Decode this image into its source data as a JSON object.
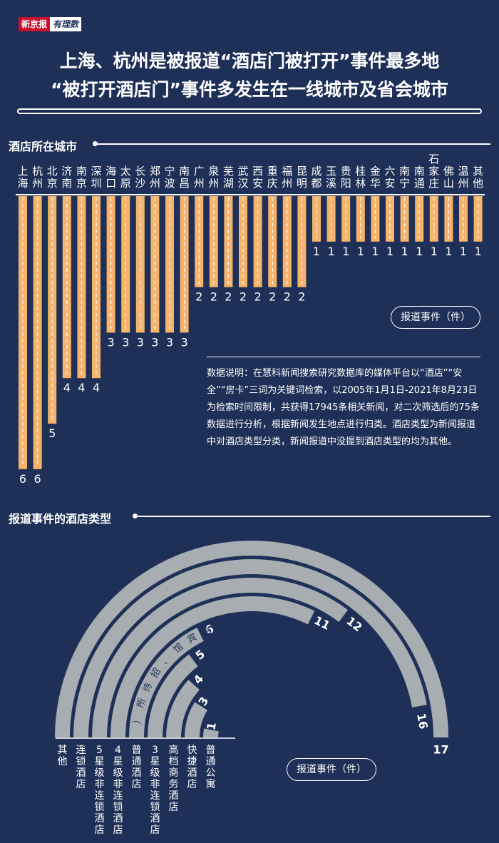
{
  "header": {
    "brand_main": "新京报",
    "brand_sub": "有理数",
    "title_line1": "上海、杭州是被报道“酒店门被打开”事件最多地",
    "title_line2": "“被打开酒店门”事件多发生在一线城市及省会城市"
  },
  "section1": {
    "title": "酒店所在城市"
  },
  "section2": {
    "title": "报道事件的酒店类型"
  },
  "note": "数据说明：在慧科新闻搜索研究数据库的媒体平台以“酒店”“安全”“房卡”三词为关键词检索，以2005年1月1日-2021年8月23日为检索时间限制，共获得17945条相关新闻，对二次筛选后的75条数据进行分析，根据新闻发生地点进行归类。酒店类型为新闻报道中对酒店类型分类，新闻报道中没提到酒店类型的均为其他。",
  "colors": {
    "background": "#1e3057",
    "bar_fill": "#f7b36b",
    "arc_fill": "#a8adb1",
    "text": "#ffffff"
  },
  "chart_data": [
    {
      "type": "bar",
      "title": "酒店所在城市",
      "unit_label": "报道事件（件）",
      "orientation": "vertical-downward",
      "categories": [
        "上海",
        "杭州",
        "北京",
        "济南",
        "南京",
        "深圳",
        "海口",
        "太原",
        "长沙",
        "郑州",
        "宁波",
        "南昌",
        "广州",
        "泉州",
        "芜湖",
        "武汉",
        "西安",
        "重庆",
        "福州",
        "昆明",
        "成都",
        "玉溪",
        "贵阳",
        "桂林",
        "金华",
        "六安",
        "南宁",
        "南通",
        "石家庄",
        "佛山",
        "温州",
        "其他"
      ],
      "values": [
        6,
        6,
        5,
        4,
        4,
        4,
        3,
        3,
        3,
        3,
        3,
        3,
        2,
        2,
        2,
        2,
        2,
        2,
        2,
        2,
        1,
        1,
        1,
        1,
        1,
        1,
        1,
        1,
        1,
        1,
        1,
        1
      ],
      "ylim": [
        0,
        6
      ]
    },
    {
      "type": "radial-bar",
      "title": "报道事件的酒店类型",
      "unit_label": "报道事件（件）",
      "categories": [
        "其他",
        "连锁酒店",
        "5星级非连锁酒店",
        "4星级非连锁酒店",
        "普通酒店",
        "3星级非连锁酒店",
        "高档商务酒店",
        "快捷酒店",
        "普通公寓"
      ],
      "values": [
        17,
        16,
        12,
        11,
        6,
        5,
        4,
        3,
        1
      ],
      "annotation": {
        "category": "普通酒店",
        "text": "（含宾馆、招待所）"
      },
      "max": 17
    }
  ]
}
